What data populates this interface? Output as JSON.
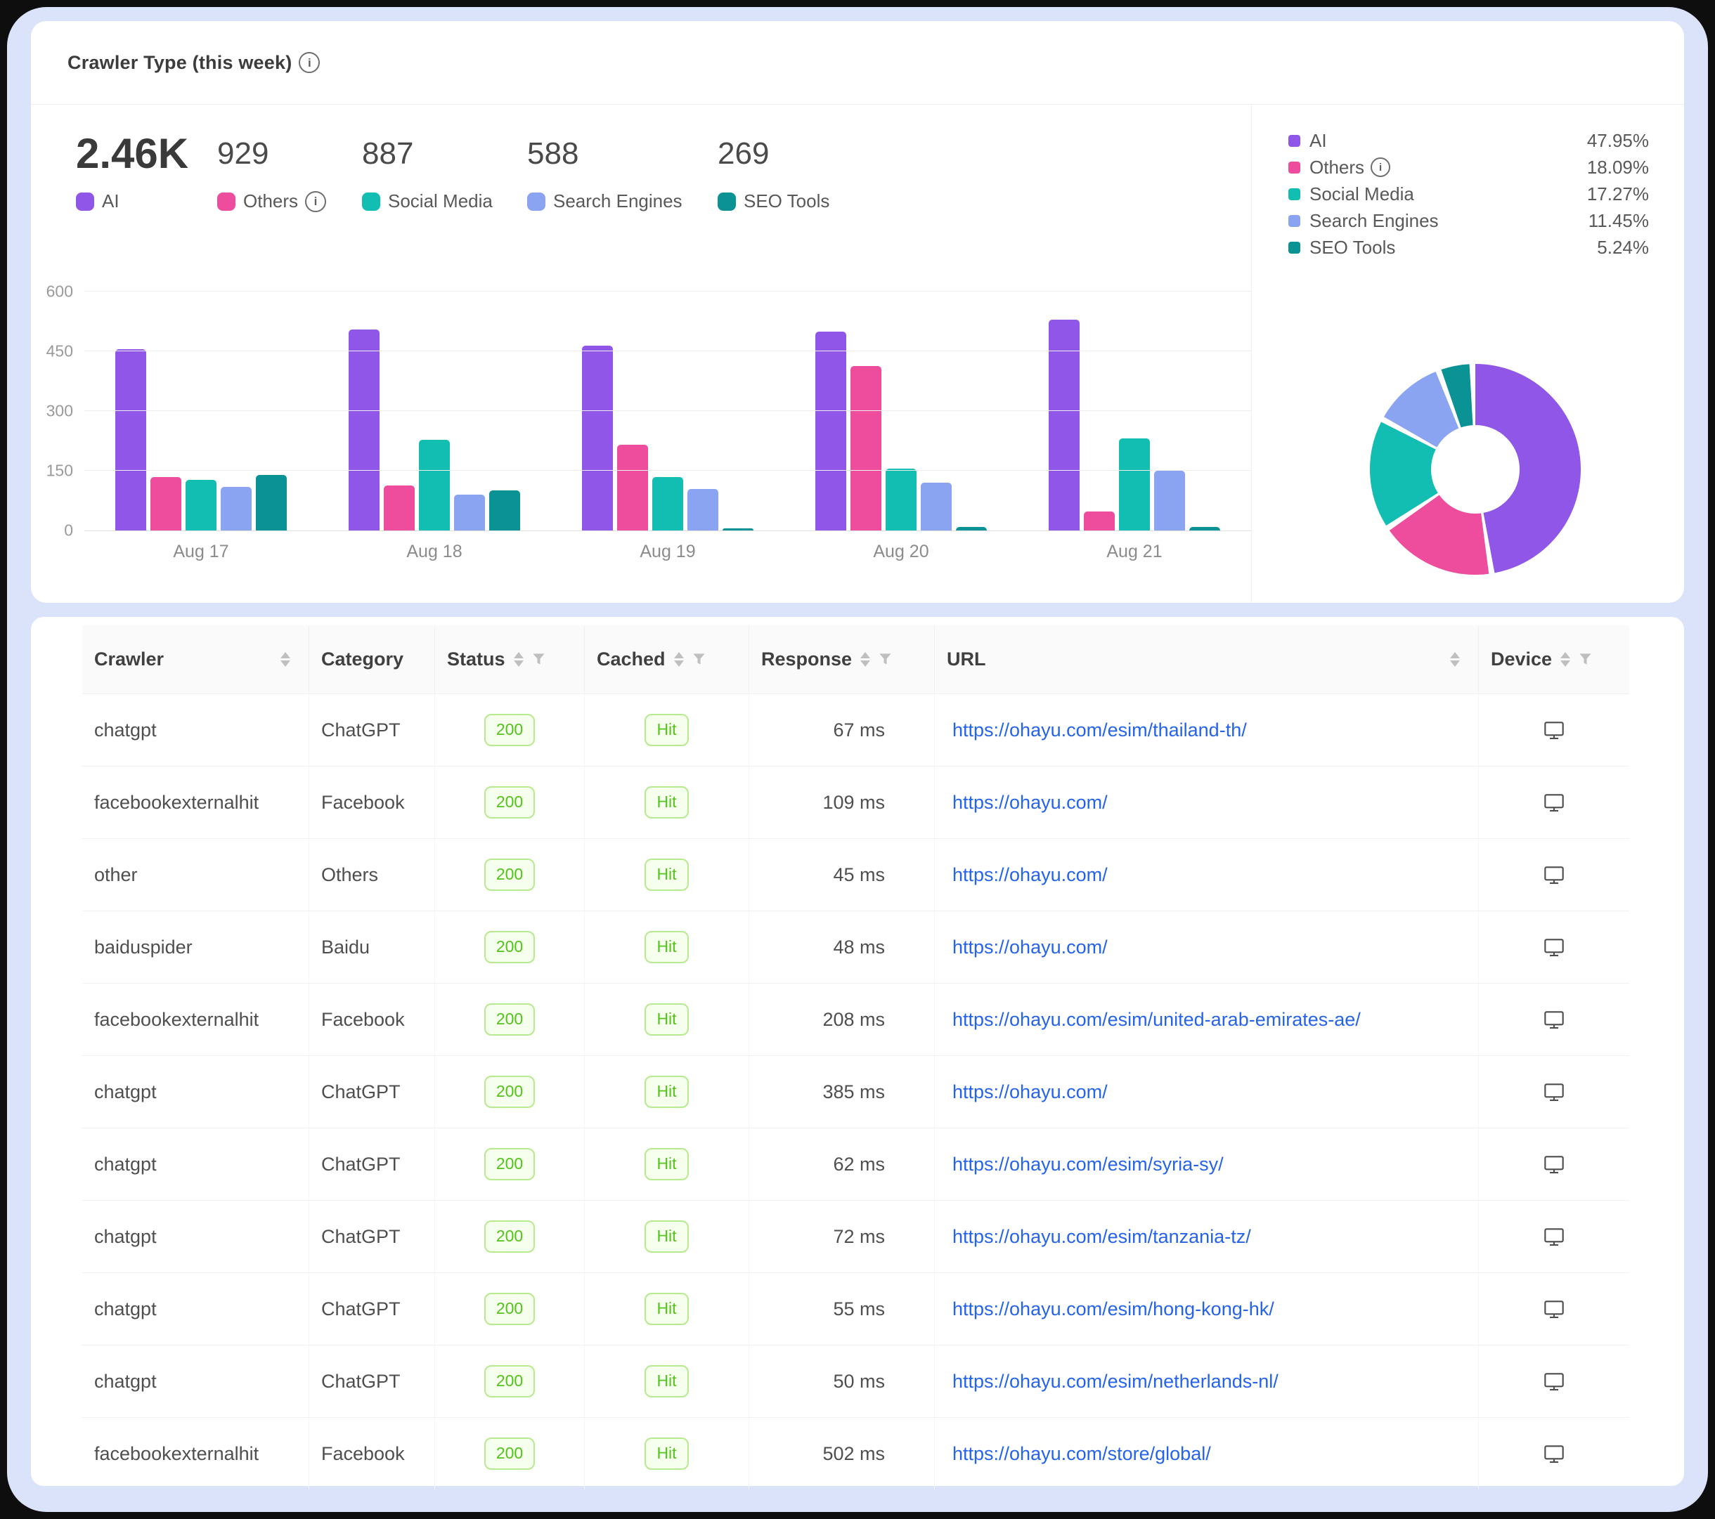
{
  "panel": {
    "title": "Crawler Type (this week)",
    "stats": [
      {
        "label": "AI",
        "value": "2.46K",
        "color": "#8F56E7",
        "info": false
      },
      {
        "label": "Others",
        "value": "929",
        "color": "#EE4D9D",
        "info": true
      },
      {
        "label": "Social Media",
        "value": "887",
        "color": "#12BEB2",
        "info": false
      },
      {
        "label": "Search Engines",
        "value": "588",
        "color": "#8AA4F2",
        "info": false
      },
      {
        "label": "SEO Tools",
        "value": "269",
        "color": "#0A9294",
        "info": false
      }
    ],
    "legend": [
      {
        "label": "AI",
        "percent_label": "47.95%",
        "value": 47.95,
        "color": "#8F56E7",
        "info": false
      },
      {
        "label": "Others",
        "percent_label": "18.09%",
        "value": 18.09,
        "color": "#EE4D9D",
        "info": true
      },
      {
        "label": "Social Media",
        "percent_label": "17.27%",
        "value": 17.27,
        "color": "#12BEB2",
        "info": false
      },
      {
        "label": "Search Engines",
        "percent_label": "11.45%",
        "value": 11.45,
        "color": "#8AA4F2",
        "info": false
      },
      {
        "label": "SEO Tools",
        "percent_label": "5.24%",
        "value": 5.24,
        "color": "#0A9294",
        "info": false
      }
    ]
  },
  "chart_data": [
    {
      "type": "bar",
      "title": "Crawler Type (this week)",
      "categories": [
        "Aug 17",
        "Aug 18",
        "Aug 19",
        "Aug 20",
        "Aug 21"
      ],
      "series": [
        {
          "name": "AI",
          "color": "#8F56E7",
          "values": [
            455,
            505,
            465,
            500,
            530
          ]
        },
        {
          "name": "Others",
          "color": "#EE4D9D",
          "values": [
            135,
            113,
            215,
            413,
            48
          ]
        },
        {
          "name": "Social Media",
          "color": "#12BEB2",
          "values": [
            127,
            228,
            135,
            155,
            232
          ]
        },
        {
          "name": "Search Engines",
          "color": "#8AA4F2",
          "values": [
            110,
            90,
            105,
            120,
            150
          ]
        },
        {
          "name": "SEO Tools",
          "color": "#0A9294",
          "values": [
            140,
            100,
            3,
            8,
            8
          ]
        }
      ],
      "ylim": [
        0,
        600
      ],
      "yticks": [
        0,
        150,
        300,
        450,
        600
      ],
      "grid": true,
      "legend_position": "top-left"
    },
    {
      "type": "pie",
      "subtype": "donut",
      "segments": [
        {
          "label": "AI",
          "value": 47.95,
          "color": "#8F56E7"
        },
        {
          "label": "Others",
          "value": 18.09,
          "color": "#EE4D9D"
        },
        {
          "label": "Social Media",
          "value": 17.27,
          "color": "#12BEB2"
        },
        {
          "label": "Search Engines",
          "value": 11.45,
          "color": "#8AA4F2"
        },
        {
          "label": "SEO Tools",
          "value": 5.24,
          "color": "#0A9294"
        }
      ],
      "legend_position": "right"
    }
  ],
  "table": {
    "columns": [
      {
        "key": "crawler",
        "label": "Crawler",
        "sort": true,
        "filter": false
      },
      {
        "key": "category",
        "label": "Category",
        "sort": false,
        "filter": false
      },
      {
        "key": "status",
        "label": "Status",
        "sort": true,
        "filter": true
      },
      {
        "key": "cached",
        "label": "Cached",
        "sort": true,
        "filter": true
      },
      {
        "key": "response",
        "label": "Response",
        "sort": true,
        "filter": true
      },
      {
        "key": "url",
        "label": "URL",
        "sort": true,
        "filter": false
      },
      {
        "key": "device",
        "label": "Device",
        "sort": true,
        "filter": true
      }
    ],
    "rows": [
      {
        "crawler": "chatgpt",
        "category": "ChatGPT",
        "status": "200",
        "cached": "Hit",
        "response": "67 ms",
        "url": "https://ohayu.com/esim/thailand-th/",
        "device": "desktop"
      },
      {
        "crawler": "facebookexternalhit",
        "category": "Facebook",
        "status": "200",
        "cached": "Hit",
        "response": "109 ms",
        "url": "https://ohayu.com/",
        "device": "desktop"
      },
      {
        "crawler": "other",
        "category": "Others",
        "status": "200",
        "cached": "Hit",
        "response": "45 ms",
        "url": "https://ohayu.com/",
        "device": "desktop"
      },
      {
        "crawler": "baiduspider",
        "category": "Baidu",
        "status": "200",
        "cached": "Hit",
        "response": "48 ms",
        "url": "https://ohayu.com/",
        "device": "desktop"
      },
      {
        "crawler": "facebookexternalhit",
        "category": "Facebook",
        "status": "200",
        "cached": "Hit",
        "response": "208 ms",
        "url": "https://ohayu.com/esim/united-arab-emirates-ae/",
        "device": "desktop"
      },
      {
        "crawler": "chatgpt",
        "category": "ChatGPT",
        "status": "200",
        "cached": "Hit",
        "response": "385 ms",
        "url": "https://ohayu.com/",
        "device": "desktop"
      },
      {
        "crawler": "chatgpt",
        "category": "ChatGPT",
        "status": "200",
        "cached": "Hit",
        "response": "62 ms",
        "url": "https://ohayu.com/esim/syria-sy/",
        "device": "desktop"
      },
      {
        "crawler": "chatgpt",
        "category": "ChatGPT",
        "status": "200",
        "cached": "Hit",
        "response": "72 ms",
        "url": "https://ohayu.com/esim/tanzania-tz/",
        "device": "desktop"
      },
      {
        "crawler": "chatgpt",
        "category": "ChatGPT",
        "status": "200",
        "cached": "Hit",
        "response": "55 ms",
        "url": "https://ohayu.com/esim/hong-kong-hk/",
        "device": "desktop"
      },
      {
        "crawler": "chatgpt",
        "category": "ChatGPT",
        "status": "200",
        "cached": "Hit",
        "response": "50 ms",
        "url": "https://ohayu.com/esim/netherlands-nl/",
        "device": "desktop"
      },
      {
        "crawler": "facebookexternalhit",
        "category": "Facebook",
        "status": "200",
        "cached": "Hit",
        "response": "502 ms",
        "url": "https://ohayu.com/store/global/",
        "device": "desktop"
      }
    ]
  },
  "icons": {
    "info": "i"
  },
  "colors": {
    "frame": "#dbe3fb",
    "card": "#ffffff",
    "link": "#2563eb",
    "badge_text": "#52c41a",
    "badge_bg": "#f6ffed",
    "badge_border": "#b7eb8f"
  }
}
